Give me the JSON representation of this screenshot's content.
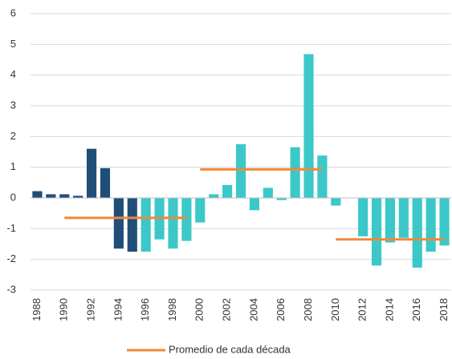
{
  "chart_data": {
    "type": "bar",
    "categories": [
      "1988",
      "1989",
      "1990",
      "1991",
      "1992",
      "1993",
      "1994",
      "1995",
      "1996",
      "1997",
      "1998",
      "1999",
      "2000",
      "2001",
      "2002",
      "2003",
      "2004",
      "2005",
      "2006",
      "2007",
      "2008",
      "2009",
      "2010",
      "2011",
      "2012",
      "2013",
      "2014",
      "2015",
      "2016",
      "2017",
      "2018"
    ],
    "category_labels_shown": [
      0,
      2,
      4,
      6,
      8,
      10,
      12,
      14,
      16,
      18,
      20,
      22,
      24,
      26,
      28,
      30
    ],
    "values": [
      0.22,
      0.12,
      0.12,
      0.07,
      1.6,
      0.97,
      -1.65,
      -1.75,
      -1.75,
      -1.35,
      -1.65,
      -1.4,
      -0.8,
      0.12,
      0.42,
      1.75,
      -0.4,
      0.33,
      -0.07,
      1.65,
      4.68,
      1.38,
      -0.25,
      0,
      -1.25,
      -2.2,
      -1.45,
      -1.3,
      -2.27,
      -1.75,
      -1.55
    ],
    "colors": [
      "#1f4e79",
      "#1f4e79",
      "#1f4e79",
      "#1f4e79",
      "#1f4e79",
      "#1f4e79",
      "#1f4e79",
      "#1f4e79",
      "#3cc8c8",
      "#3cc8c8",
      "#3cc8c8",
      "#3cc8c8",
      "#3cc8c8",
      "#3cc8c8",
      "#3cc8c8",
      "#3cc8c8",
      "#3cc8c8",
      "#3cc8c8",
      "#3cc8c8",
      "#3cc8c8",
      "#3cc8c8",
      "#3cc8c8",
      "#3cc8c8",
      "#3cc8c8",
      "#3cc8c8",
      "#3cc8c8",
      "#3cc8c8",
      "#3cc8c8",
      "#3cc8c8",
      "#3cc8c8",
      "#3cc8c8"
    ],
    "series": [
      {
        "name": "Promedio de cada década",
        "color": "#f0883a",
        "values": [
          null,
          null,
          -0.65,
          -0.65,
          -0.65,
          -0.65,
          -0.65,
          -0.65,
          -0.65,
          -0.65,
          -0.65,
          -0.65,
          0.93,
          0.93,
          0.93,
          0.93,
          0.93,
          0.93,
          0.93,
          0.93,
          0.93,
          0.93,
          -1.35,
          -1.35,
          -1.35,
          -1.35,
          -1.35,
          -1.35,
          -1.35,
          -1.35,
          -1.35
        ]
      }
    ],
    "ylim": [
      -3,
      6
    ],
    "yticks": [
      -3,
      -2,
      -1,
      0,
      1,
      2,
      3,
      4,
      5,
      6
    ],
    "grid": true,
    "legend": "bottom"
  }
}
